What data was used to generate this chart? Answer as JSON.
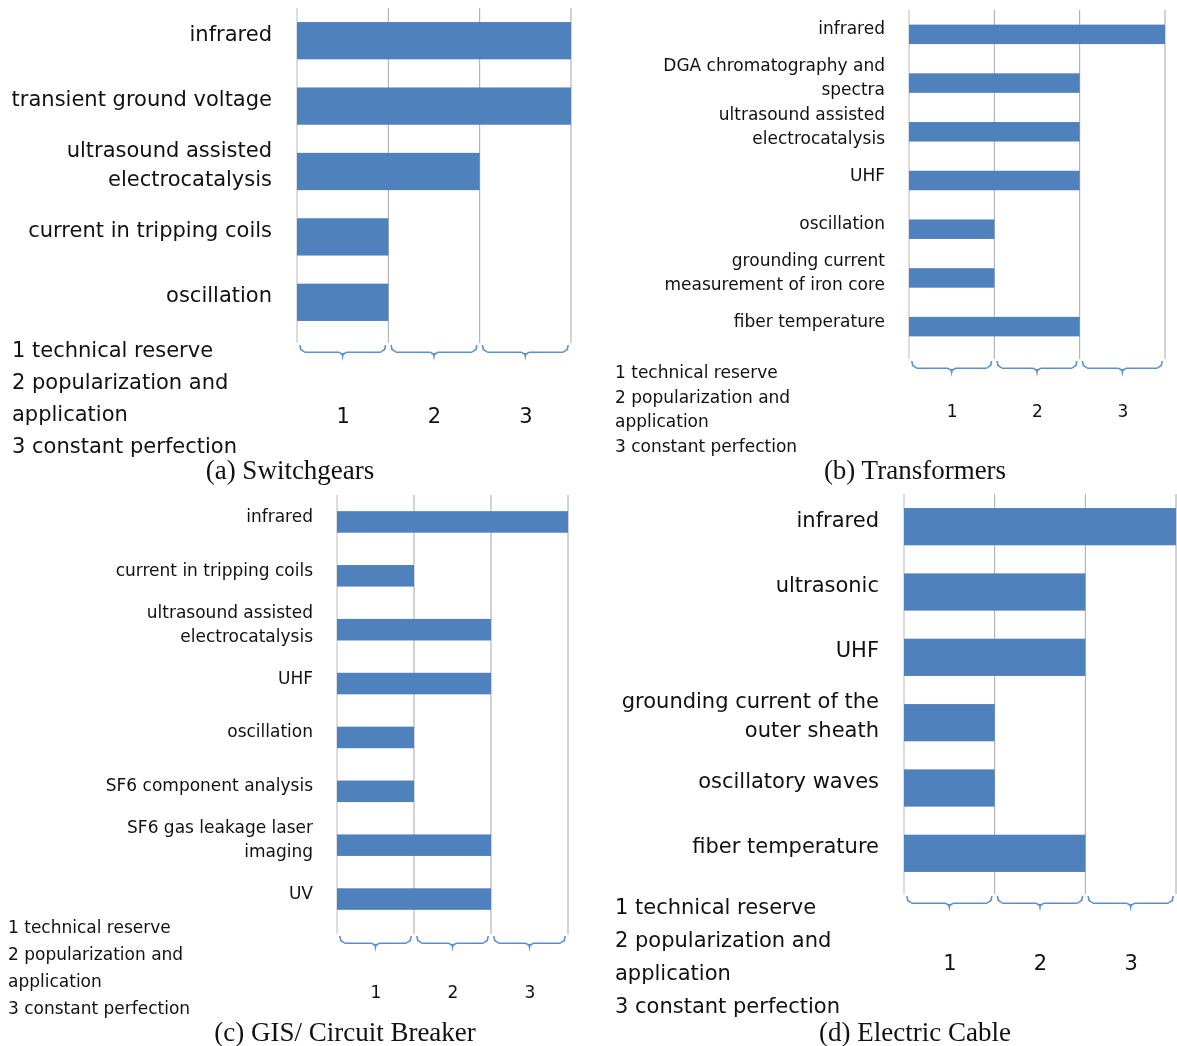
{
  "chart_data": [
    {
      "type": "bar",
      "orientation": "horizontal",
      "title": "(a) Switchgears",
      "categories": [
        "infrared",
        "transient ground voltage",
        "ultrasound assisted electrocatalysis",
        "current in tripping coils",
        "oscillation"
      ],
      "values": [
        3,
        3,
        2,
        1,
        1
      ],
      "color": "#4f81bd",
      "xlim": [
        0,
        3
      ],
      "xticks": [
        {
          "value": 0.5,
          "label": "1"
        },
        {
          "value": 1.5,
          "label": "2"
        },
        {
          "value": 2.5,
          "label": "3"
        }
      ],
      "ref_lines": [
        {
          "axis": "x",
          "value": 1,
          "color": "#a6a6a6"
        },
        {
          "axis": "x",
          "value": 2,
          "color": "#a6a6a6"
        },
        {
          "axis": "x",
          "value": 3,
          "color": "#a6a6a6"
        }
      ],
      "annotations": [
        "1 technical reserve",
        "2  popularization and application",
        "3 constant perfection"
      ]
    },
    {
      "type": "bar",
      "orientation": "horizontal",
      "title": "(b) Transformers",
      "categories": [
        "infrared",
        "DGA chromatography and spectra",
        "ultrasound assisted electrocatalysis",
        "UHF",
        "oscillation",
        "grounding current measurement of iron core",
        "fiber temperature"
      ],
      "values": [
        3,
        2,
        2,
        2,
        1,
        1,
        2
      ],
      "color": "#4f81bd",
      "xlim": [
        0,
        3
      ],
      "xticks": [
        {
          "value": 0.5,
          "label": "1"
        },
        {
          "value": 1.5,
          "label": "2"
        },
        {
          "value": 2.5,
          "label": "3"
        }
      ],
      "ref_lines": [
        {
          "axis": "x",
          "value": 1,
          "color": "#a6a6a6"
        },
        {
          "axis": "x",
          "value": 2,
          "color": "#a6a6a6"
        },
        {
          "axis": "x",
          "value": 3,
          "color": "#a6a6a6"
        }
      ],
      "annotations": [
        "1 technical reserve",
        "2  popularization and application",
        "3 constant perfection"
      ]
    },
    {
      "type": "bar",
      "orientation": "horizontal",
      "title": "(c) GIS/ Circuit Breaker",
      "categories": [
        "infrared",
        "current in tripping coils",
        "ultrasound assisted electrocatalysis",
        "UHF",
        "oscillation",
        "SF6 component analysis",
        "SF6 gas leakage laser imaging",
        "UV"
      ],
      "values": [
        3,
        1,
        2,
        2,
        1,
        1,
        2,
        2
      ],
      "color": "#4f81bd",
      "xlim": [
        0,
        3
      ],
      "xticks": [
        {
          "value": 0.5,
          "label": "1"
        },
        {
          "value": 1.5,
          "label": "2"
        },
        {
          "value": 2.5,
          "label": "3"
        }
      ],
      "ref_lines": [
        {
          "axis": "x",
          "value": 1,
          "color": "#a6a6a6"
        },
        {
          "axis": "x",
          "value": 2,
          "color": "#a6a6a6"
        },
        {
          "axis": "x",
          "value": 3,
          "color": "#a6a6a6"
        }
      ],
      "annotations": [
        "1 technical reserve",
        "2  popularization and application",
        "3 constant perfection"
      ]
    },
    {
      "type": "bar",
      "orientation": "horizontal",
      "title": "(d) Electric Cable",
      "categories": [
        "infrared",
        "ultrasonic",
        "UHF",
        "grounding current of the outer sheath",
        "oscillatory waves",
        "fiber temperature"
      ],
      "values": [
        3,
        2,
        2,
        1,
        1,
        2
      ],
      "color": "#4f81bd",
      "xlim": [
        0,
        3
      ],
      "xticks": [
        {
          "value": 0.5,
          "label": "1"
        },
        {
          "value": 1.5,
          "label": "2"
        },
        {
          "value": 2.5,
          "label": "3"
        }
      ],
      "ref_lines": [
        {
          "axis": "x",
          "value": 1,
          "color": "#a6a6a6"
        },
        {
          "axis": "x",
          "value": 2,
          "color": "#a6a6a6"
        },
        {
          "axis": "x",
          "value": 3,
          "color": "#a6a6a6"
        }
      ],
      "annotations": [
        "1 technical reserve",
        "2  popularization and application",
        "3 constant perfection"
      ]
    }
  ]
}
